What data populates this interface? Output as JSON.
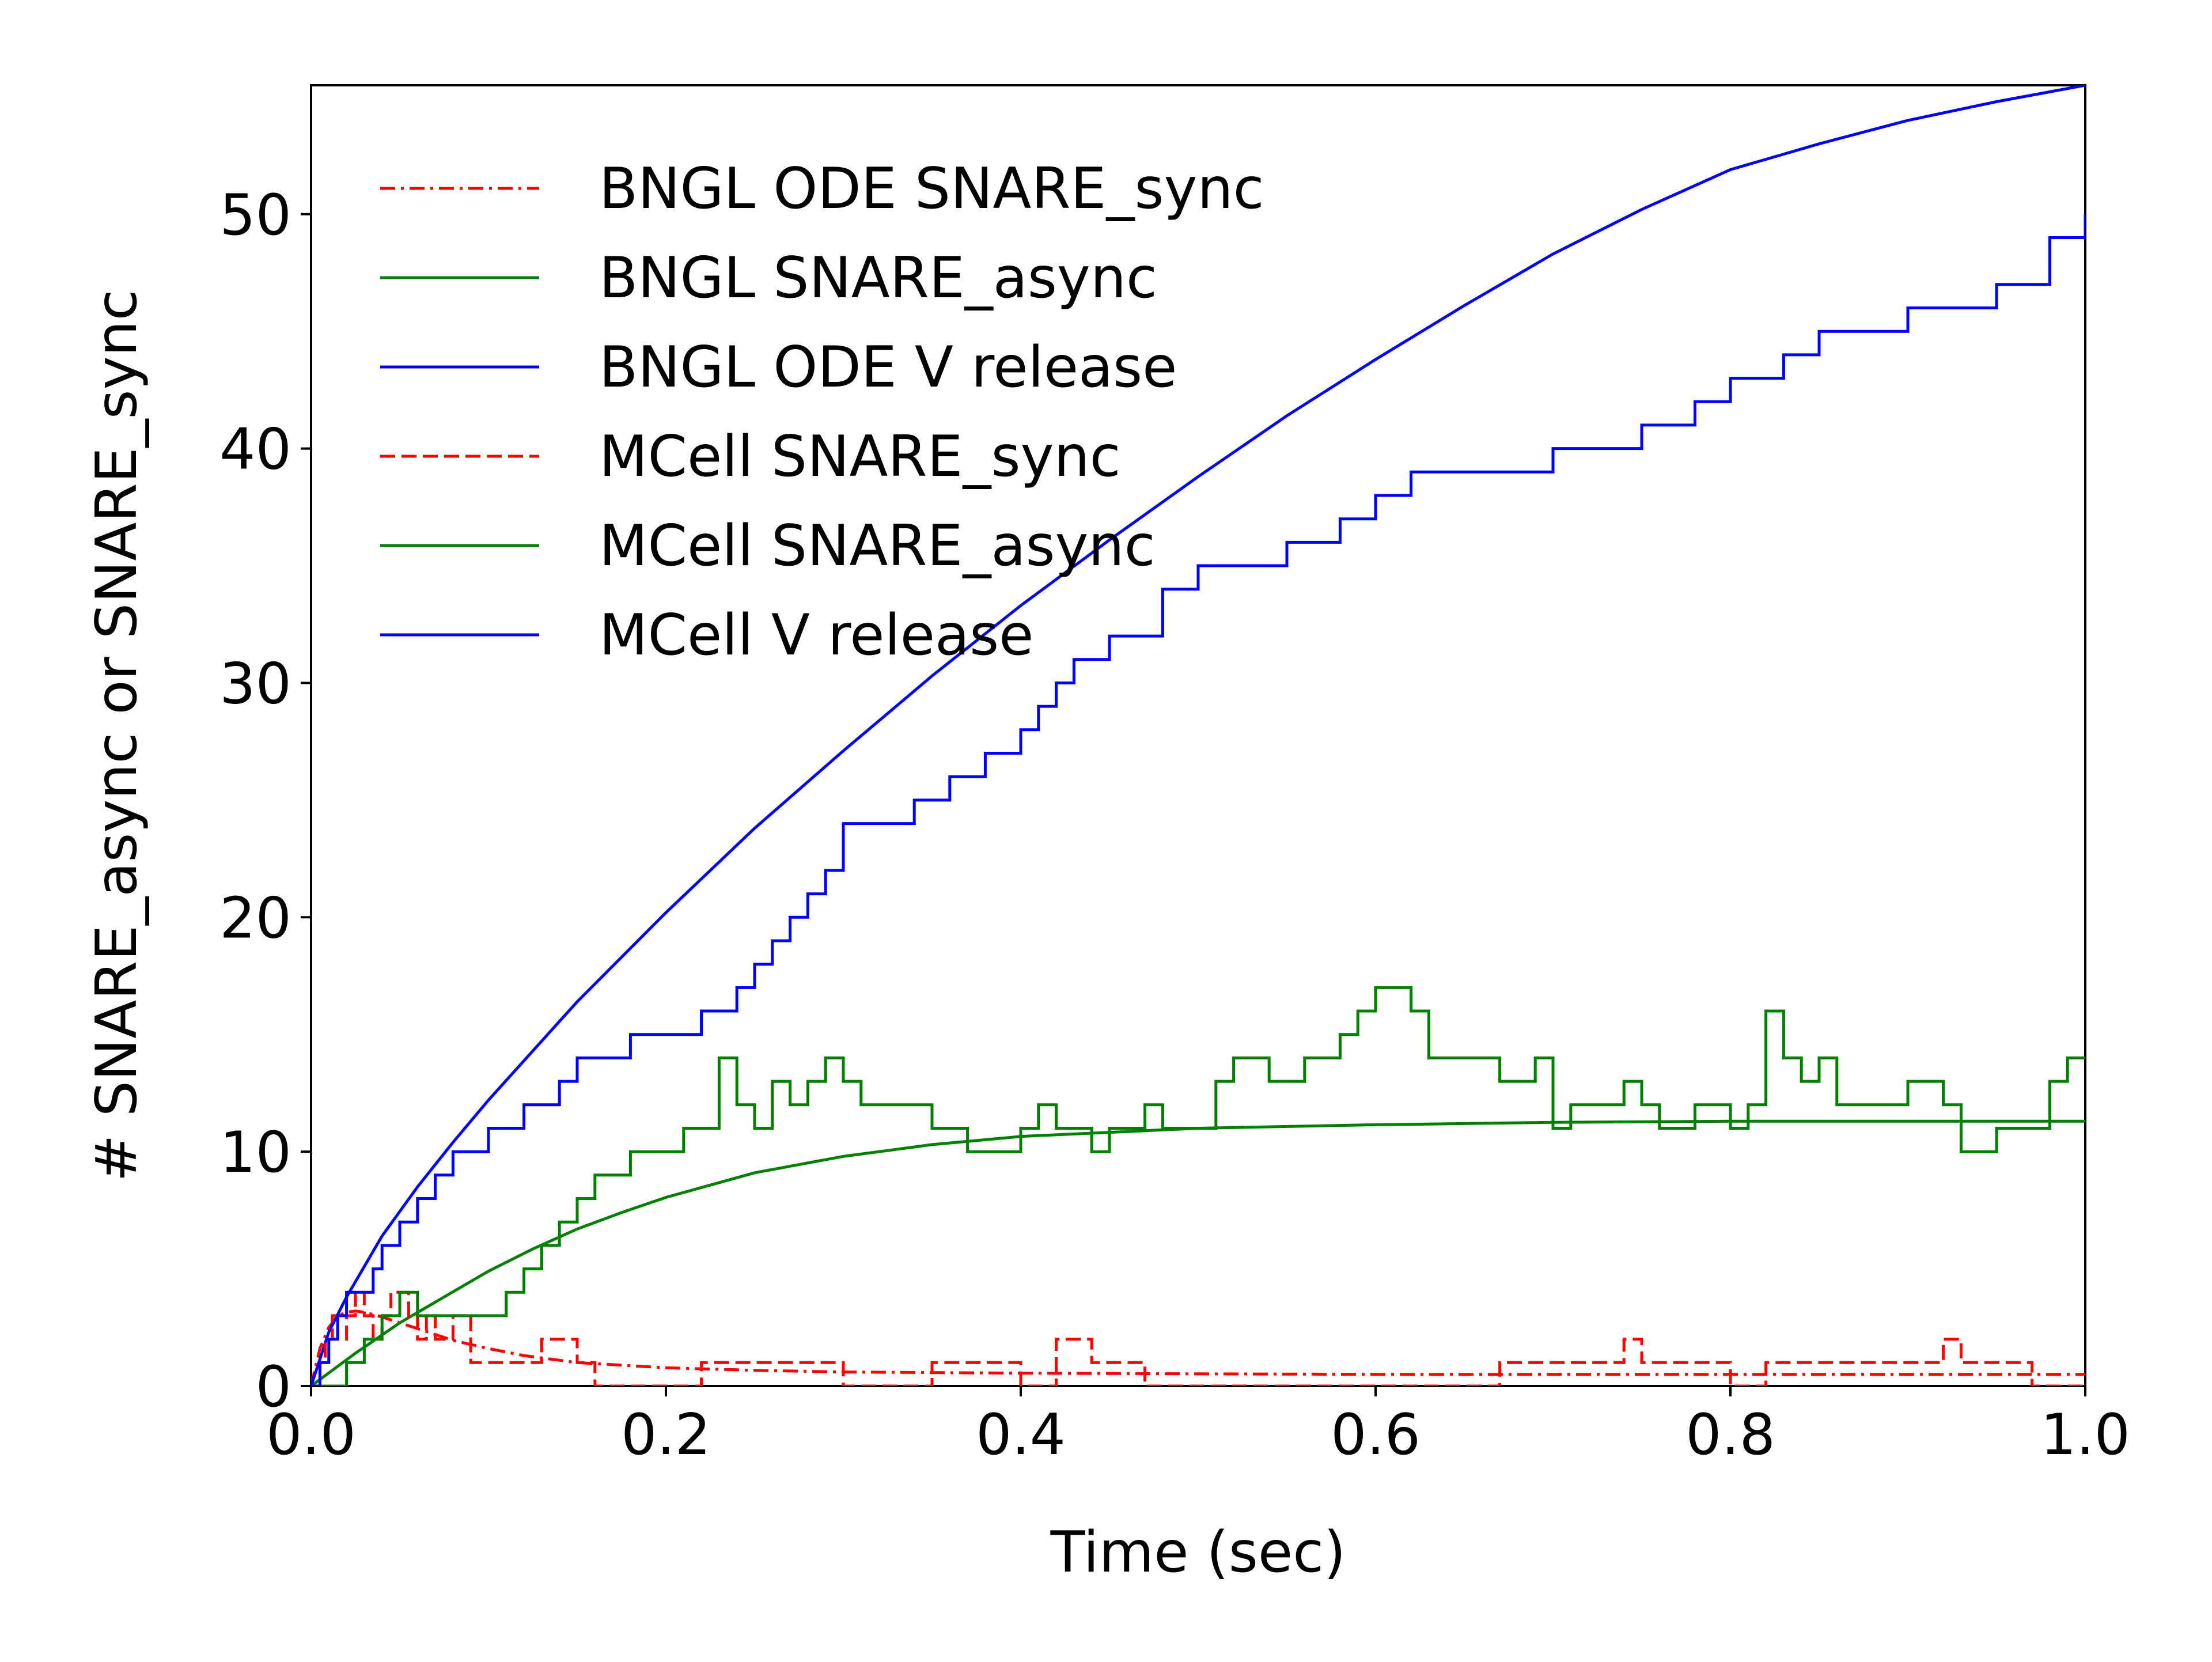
{
  "chart_data": {
    "type": "line",
    "title": "",
    "xlabel": "Time (sec)",
    "ylabel": "# SNARE_async or SNARE_sync",
    "xlim": [
      0.0,
      1.0
    ],
    "ylim": [
      0,
      55.5
    ],
    "xticks": [
      0.0,
      0.2,
      0.4,
      0.6,
      0.8,
      1.0
    ],
    "xtick_labels": [
      "0.0",
      "0.2",
      "0.4",
      "0.6",
      "0.8",
      "1.0"
    ],
    "yticks": [
      0,
      10,
      20,
      30,
      40,
      50
    ],
    "ytick_labels": [
      "0",
      "10",
      "20",
      "30",
      "40",
      "50"
    ],
    "grid": false,
    "legend_position": "top-left",
    "series": [
      {
        "name": "BNGL ODE SNARE_sync",
        "color": "#ff0000",
        "style": "dashdot",
        "x": [
          0.0,
          0.005,
          0.01,
          0.015,
          0.02,
          0.025,
          0.03,
          0.04,
          0.05,
          0.06,
          0.07,
          0.08,
          0.1,
          0.12,
          0.15,
          0.2,
          0.25,
          0.3,
          0.4,
          0.5,
          0.6,
          0.7,
          0.8,
          0.9,
          1.0
        ],
        "y": [
          0.0,
          1.6,
          2.5,
          3.0,
          3.15,
          3.2,
          3.15,
          2.95,
          2.7,
          2.45,
          2.2,
          1.95,
          1.6,
          1.3,
          1.0,
          0.78,
          0.67,
          0.6,
          0.55,
          0.52,
          0.5,
          0.5,
          0.5,
          0.5,
          0.5
        ]
      },
      {
        "name": "BNGL SNARE_async",
        "color": "#008000",
        "style": "solid",
        "x": [
          0.0,
          0.025,
          0.05,
          0.075,
          0.1,
          0.125,
          0.15,
          0.175,
          0.2,
          0.25,
          0.3,
          0.35,
          0.4,
          0.5,
          0.6,
          0.7,
          0.8,
          0.9,
          1.0
        ],
        "y": [
          0.0,
          1.4,
          2.7,
          3.8,
          4.9,
          5.85,
          6.7,
          7.4,
          8.05,
          9.1,
          9.8,
          10.3,
          10.65,
          11.0,
          11.15,
          11.25,
          11.3,
          11.3,
          11.3
        ]
      },
      {
        "name": "BNGL ODE V release",
        "color": "#0000ff",
        "style": "solid",
        "x": [
          0.0,
          0.01,
          0.02,
          0.04,
          0.06,
          0.08,
          0.1,
          0.15,
          0.2,
          0.25,
          0.3,
          0.35,
          0.4,
          0.45,
          0.5,
          0.55,
          0.6,
          0.65,
          0.7,
          0.75,
          0.8,
          0.85,
          0.9,
          0.95,
          1.0
        ],
        "y": [
          0.0,
          2.3,
          3.8,
          6.4,
          8.5,
          10.4,
          12.2,
          16.4,
          20.2,
          23.8,
          27.1,
          30.3,
          33.3,
          36.1,
          38.8,
          41.4,
          43.8,
          46.1,
          48.3,
          50.2,
          51.9,
          53.0,
          54.0,
          54.8,
          55.5
        ]
      },
      {
        "name": "MCell SNARE_sync",
        "color": "#ff0000",
        "style": "dashed",
        "x": [
          0.0,
          0.005,
          0.008,
          0.012,
          0.015,
          0.02,
          0.025,
          0.03,
          0.035,
          0.04,
          0.045,
          0.055,
          0.06,
          0.065,
          0.07,
          0.08,
          0.09,
          0.1,
          0.13,
          0.14,
          0.15,
          0.16,
          0.2,
          0.22,
          0.3,
          0.33,
          0.35,
          0.36,
          0.38,
          0.4,
          0.42,
          0.44,
          0.45,
          0.47,
          0.5,
          0.55,
          0.6,
          0.65,
          0.67,
          0.7,
          0.73,
          0.74,
          0.75,
          0.8,
          0.82,
          0.88,
          0.9,
          0.92,
          0.93,
          0.95,
          0.97,
          1.0
        ],
        "y": [
          0,
          1,
          2,
          3,
          2,
          3,
          4,
          3,
          2,
          3,
          4,
          3,
          2,
          3,
          2,
          3,
          1,
          1,
          2,
          2,
          1,
          0,
          0,
          1,
          0,
          0,
          1,
          1,
          1,
          0,
          2,
          1,
          1,
          0,
          0,
          0,
          0,
          0,
          1,
          1,
          1,
          2,
          1,
          0,
          1,
          1,
          1,
          2,
          1,
          1,
          0,
          0
        ]
      },
      {
        "name": "MCell SNARE_async",
        "color": "#008000",
        "style": "solid",
        "x": [
          0.0,
          0.02,
          0.03,
          0.04,
          0.05,
          0.06,
          0.07,
          0.1,
          0.11,
          0.12,
          0.13,
          0.14,
          0.15,
          0.16,
          0.18,
          0.2,
          0.21,
          0.22,
          0.23,
          0.24,
          0.25,
          0.26,
          0.27,
          0.28,
          0.29,
          0.3,
          0.31,
          0.33,
          0.35,
          0.36,
          0.37,
          0.4,
          0.41,
          0.42,
          0.43,
          0.44,
          0.45,
          0.46,
          0.47,
          0.48,
          0.49,
          0.5,
          0.51,
          0.52,
          0.53,
          0.54,
          0.56,
          0.57,
          0.58,
          0.59,
          0.6,
          0.61,
          0.62,
          0.63,
          0.65,
          0.67,
          0.69,
          0.7,
          0.71,
          0.73,
          0.74,
          0.75,
          0.76,
          0.78,
          0.8,
          0.81,
          0.82,
          0.83,
          0.84,
          0.85,
          0.86,
          0.88,
          0.9,
          0.92,
          0.93,
          0.95,
          0.96,
          0.98,
          0.99,
          1.0
        ],
        "y": [
          0,
          1,
          2,
          3,
          4,
          3,
          3,
          3,
          4,
          5,
          6,
          7,
          8,
          9,
          10,
          10,
          11,
          11,
          14,
          12,
          11,
          13,
          12,
          13,
          14,
          13,
          12,
          12,
          11,
          11,
          10,
          11,
          12,
          11,
          11,
          10,
          11,
          11,
          12,
          11,
          11,
          11,
          13,
          14,
          14,
          13,
          14,
          14,
          15,
          16,
          17,
          17,
          16,
          14,
          14,
          13,
          14,
          11,
          12,
          12,
          13,
          12,
          11,
          12,
          11,
          12,
          16,
          14,
          13,
          14,
          12,
          12,
          13,
          12,
          10,
          11,
          11,
          13,
          14,
          14
        ]
      },
      {
        "name": "MCell V release",
        "color": "#0000ff",
        "style": "solid",
        "x": [
          0.0,
          0.005,
          0.01,
          0.015,
          0.02,
          0.03,
          0.035,
          0.04,
          0.05,
          0.06,
          0.07,
          0.08,
          0.09,
          0.1,
          0.12,
          0.14,
          0.15,
          0.16,
          0.18,
          0.2,
          0.22,
          0.24,
          0.25,
          0.26,
          0.27,
          0.28,
          0.29,
          0.3,
          0.32,
          0.34,
          0.36,
          0.38,
          0.4,
          0.41,
          0.42,
          0.43,
          0.45,
          0.48,
          0.5,
          0.52,
          0.55,
          0.58,
          0.6,
          0.62,
          0.65,
          0.7,
          0.75,
          0.78,
          0.8,
          0.83,
          0.85,
          0.9,
          0.95,
          0.98,
          1.0
        ],
        "y": [
          0,
          1,
          2,
          3,
          4,
          4,
          5,
          6,
          7,
          8,
          9,
          10,
          10,
          11,
          12,
          13,
          14,
          14,
          15,
          15,
          16,
          17,
          18,
          19,
          20,
          21,
          22,
          24,
          24,
          25,
          26,
          27,
          28,
          29,
          30,
          31,
          32,
          34,
          35,
          35,
          36,
          37,
          38,
          39,
          39,
          40,
          41,
          42,
          43,
          44,
          45,
          46,
          47,
          49,
          50
        ]
      }
    ]
  }
}
